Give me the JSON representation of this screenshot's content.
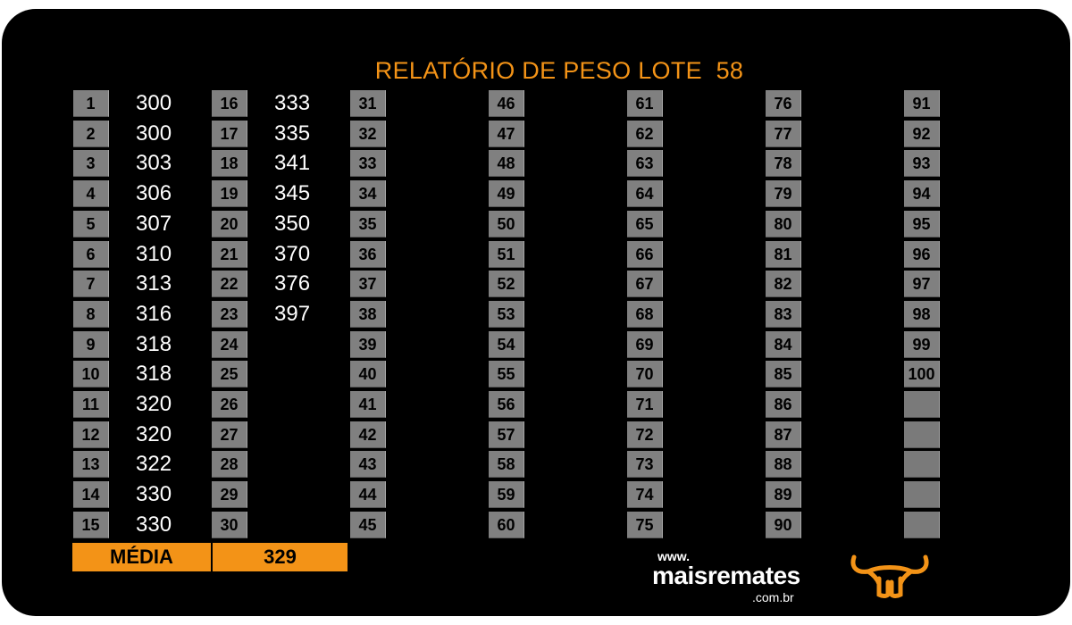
{
  "report": {
    "title": "RELATÓRIO DE PESO LOTE  58",
    "columns": [
      {
        "numbers": [
          "1",
          "2",
          "3",
          "4",
          "5",
          "6",
          "7",
          "8",
          "9",
          "10",
          "11",
          "12",
          "13",
          "14",
          "15"
        ],
        "weights": [
          "300",
          "300",
          "303",
          "306",
          "307",
          "310",
          "313",
          "316",
          "318",
          "318",
          "320",
          "320",
          "322",
          "330",
          "330"
        ]
      },
      {
        "numbers": [
          "16",
          "17",
          "18",
          "19",
          "20",
          "21",
          "22",
          "23",
          "24",
          "25",
          "26",
          "27",
          "28",
          "29",
          "30"
        ],
        "weights": [
          "333",
          "335",
          "341",
          "345",
          "350",
          "370",
          "376",
          "397",
          "",
          "",
          "",
          "",
          "",
          "",
          ""
        ]
      },
      {
        "numbers": [
          "31",
          "32",
          "33",
          "34",
          "35",
          "36",
          "37",
          "38",
          "39",
          "40",
          "41",
          "42",
          "43",
          "44",
          "45"
        ],
        "weights": []
      },
      {
        "numbers": [
          "46",
          "47",
          "48",
          "49",
          "50",
          "51",
          "52",
          "53",
          "54",
          "55",
          "56",
          "57",
          "58",
          "59",
          "60"
        ],
        "weights": []
      },
      {
        "numbers": [
          "61",
          "62",
          "63",
          "64",
          "65",
          "66",
          "67",
          "68",
          "69",
          "70",
          "71",
          "72",
          "73",
          "74",
          "75"
        ],
        "weights": []
      },
      {
        "numbers": [
          "76",
          "77",
          "78",
          "79",
          "80",
          "81",
          "82",
          "83",
          "84",
          "85",
          "86",
          "87",
          "88",
          "89",
          "90"
        ],
        "weights": []
      },
      {
        "numbers": [
          "91",
          "92",
          "93",
          "94",
          "95",
          "96",
          "97",
          "98",
          "99",
          "100",
          "",
          "",
          "",
          "",
          ""
        ],
        "weights": []
      }
    ],
    "average": {
      "label": "MÉDIA",
      "value": "329"
    }
  },
  "brand": {
    "www": "www.",
    "name": "maisremates",
    "domain": ".com.br",
    "logo_icon": "bull-horns-icon",
    "accent_color": "#f39317"
  }
}
